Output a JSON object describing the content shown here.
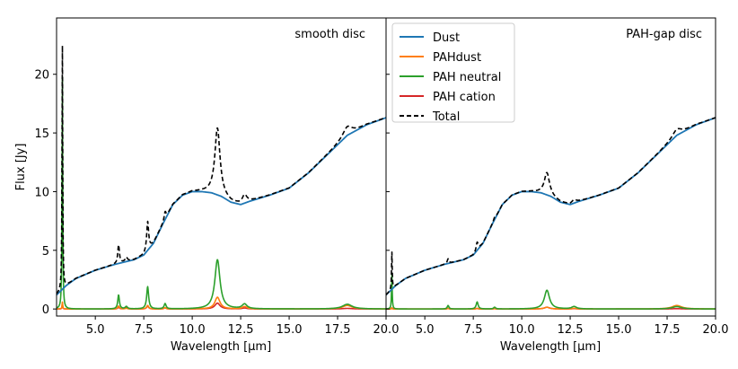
{
  "chart_data": {
    "type": "line",
    "xlabel": "Wavelength [μm]",
    "ylabel": "Flux [Jy]",
    "xlim": [
      3.0,
      20.0
    ],
    "ylim": [
      -0.6,
      24.8
    ],
    "xticks": [
      5.0,
      7.5,
      10.0,
      12.5,
      15.0,
      17.5,
      20.0
    ],
    "xtick_labels": [
      "5.0",
      "7.5",
      "10.0",
      "12.5",
      "15.0",
      "17.5",
      "20.0"
    ],
    "yticks": [
      0,
      5,
      10,
      15,
      20
    ],
    "ytick_labels": [
      "0",
      "5",
      "10",
      "15",
      "20"
    ],
    "legend": {
      "location": "top-left of right panel",
      "entries": [
        {
          "label": "Dust",
          "color": "#1f77b4",
          "style": "solid"
        },
        {
          "label": "PAHdust",
          "color": "#ff7f0e",
          "style": "solid"
        },
        {
          "label": "PAH neutral",
          "color": "#2ca02c",
          "style": "solid"
        },
        {
          "label": "PAH cation",
          "color": "#d62728",
          "style": "solid"
        },
        {
          "label": "Total",
          "color": "#000000",
          "style": "dashed"
        }
      ]
    },
    "dust_continuum": {
      "x": [
        3.0,
        3.5,
        4.0,
        5.0,
        6.0,
        7.0,
        7.5,
        8.0,
        8.5,
        9.0,
        9.5,
        10.0,
        10.5,
        11.0,
        11.5,
        12.0,
        12.5,
        13.0,
        14.0,
        15.0,
        16.0,
        17.0,
        18.0,
        19.0,
        20.0
      ],
      "y": [
        1.2,
        2.0,
        2.6,
        3.3,
        3.8,
        4.2,
        4.6,
        5.6,
        7.3,
        8.9,
        9.7,
        10.0,
        10.0,
        9.9,
        9.6,
        9.1,
        8.9,
        9.2,
        9.7,
        10.3,
        11.6,
        13.2,
        14.8,
        15.7,
        16.3
      ]
    },
    "panels": [
      {
        "title": "smooth disc",
        "pah_features": [
          {
            "center": 3.3,
            "neutral": 20.0,
            "cation": 0.4,
            "pahdust": 0.6,
            "width": 0.02
          },
          {
            "center": 6.2,
            "neutral": 1.2,
            "cation": 0.15,
            "pahdust": 0.25,
            "width": 0.05
          },
          {
            "center": 6.6,
            "neutral": 0.2,
            "cation": 0.1,
            "pahdust": 0.05,
            "width": 0.07
          },
          {
            "center": 7.7,
            "neutral": 1.9,
            "cation": 0.25,
            "pahdust": 0.3,
            "width": 0.06
          },
          {
            "center": 8.6,
            "neutral": 0.45,
            "cation": 0.1,
            "pahdust": 0.1,
            "width": 0.06
          },
          {
            "center": 11.3,
            "neutral": 4.2,
            "cation": 0.5,
            "pahdust": 1.0,
            "width": 0.16
          },
          {
            "center": 12.7,
            "neutral": 0.4,
            "cation": 0.08,
            "pahdust": 0.2,
            "width": 0.15
          },
          {
            "center": 18.0,
            "neutral": 0.4,
            "cation": 0.05,
            "pahdust": 0.3,
            "width": 0.3
          }
        ]
      },
      {
        "title": "PAH-gap disc",
        "pah_features": [
          {
            "center": 3.3,
            "neutral": 3.0,
            "cation": 0.1,
            "pahdust": 0.1,
            "width": 0.02
          },
          {
            "center": 6.2,
            "neutral": 0.3,
            "cation": 0.05,
            "pahdust": 0.05,
            "width": 0.05
          },
          {
            "center": 7.7,
            "neutral": 0.6,
            "cation": 0.05,
            "pahdust": 0.05,
            "width": 0.06
          },
          {
            "center": 8.6,
            "neutral": 0.15,
            "cation": 0.03,
            "pahdust": 0.03,
            "width": 0.06
          },
          {
            "center": 11.3,
            "neutral": 1.6,
            "cation": 0.15,
            "pahdust": 0.15,
            "width": 0.16
          },
          {
            "center": 12.7,
            "neutral": 0.2,
            "cation": 0.03,
            "pahdust": 0.05,
            "width": 0.15
          },
          {
            "center": 18.0,
            "neutral": 0.2,
            "cation": 0.03,
            "pahdust": 0.3,
            "width": 0.3
          }
        ]
      }
    ]
  }
}
